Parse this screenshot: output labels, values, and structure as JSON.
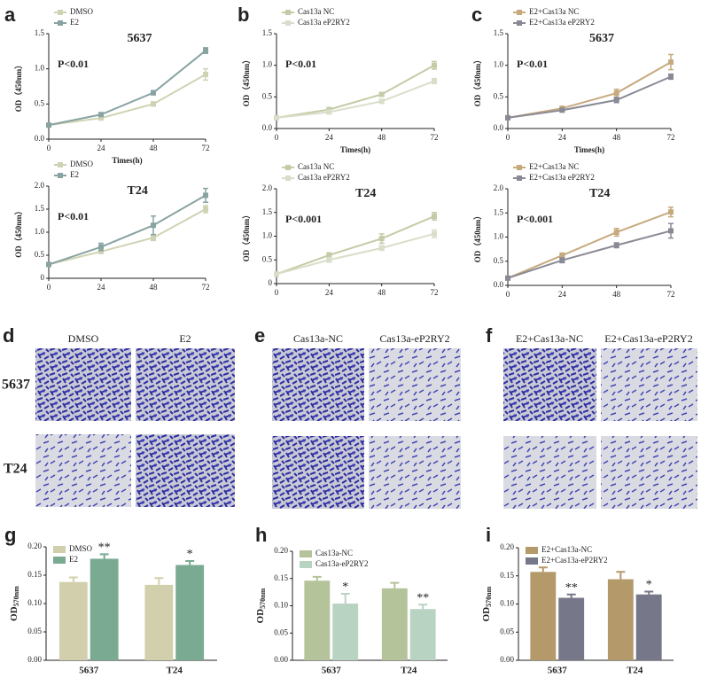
{
  "chart_data": [
    {
      "type": "line",
      "panel": "a",
      "title": "5637",
      "pvalue": "P<0.01",
      "xlabel": "Times(h)",
      "ylabel": "OD（450nm）",
      "x": [
        0,
        24,
        48,
        72
      ],
      "xlim": [
        0,
        72
      ],
      "xticks": [
        0,
        24,
        48,
        72
      ],
      "ylim": [
        0,
        1.5
      ],
      "yticks": [
        {
          "value": 0,
          "label": "0.0"
        },
        {
          "value": 0.5,
          "label": "0.5"
        },
        {
          "value": 1,
          "label": "1.0"
        },
        {
          "value": 1.5,
          "label": "1.5"
        }
      ],
      "series": [
        {
          "name": "DMSO",
          "color": "#cfd3b3",
          "values": [
            0.2,
            0.3,
            0.5,
            0.92
          ],
          "errors": [
            0.01,
            0.02,
            0.03,
            0.08
          ]
        },
        {
          "name": "E2",
          "color": "#88a3a2",
          "values": [
            0.2,
            0.35,
            0.66,
            1.26
          ],
          "errors": [
            0.01,
            0.02,
            0.03,
            0.04
          ]
        }
      ]
    },
    {
      "type": "line",
      "panel": "b",
      "pvalue": "P<0.01",
      "xlabel": "Times(h)",
      "ylabel": "OD（450nm）",
      "x": [
        0,
        24,
        48,
        72
      ],
      "xlim": [
        0,
        72
      ],
      "xticks": [
        0,
        24,
        48,
        72
      ],
      "ylim": [
        0,
        1.5
      ],
      "yticks": [
        {
          "value": 0,
          "label": "0.0"
        },
        {
          "value": 0.5,
          "label": "0.5"
        },
        {
          "value": 1,
          "label": "1.0"
        },
        {
          "value": 1.5,
          "label": "1.5"
        }
      ],
      "series": [
        {
          "name": "Cas13a NC",
          "color": "#c3cca6",
          "values": [
            0.17,
            0.3,
            0.54,
            1.0
          ],
          "errors": [
            0.01,
            0.03,
            0.03,
            0.06
          ]
        },
        {
          "name": "Cas13a eP2RY2",
          "color": "#d9dec9",
          "values": [
            0.17,
            0.26,
            0.43,
            0.75
          ],
          "errors": [
            0.01,
            0.02,
            0.03,
            0.04
          ]
        }
      ]
    },
    {
      "type": "line",
      "panel": "c",
      "title": "5637",
      "pvalue": "P<0.01",
      "xlabel": "Times(h)",
      "ylabel": "OD（450nm）",
      "x": [
        0,
        24,
        48,
        72
      ],
      "xlim": [
        0,
        72
      ],
      "xticks": [
        0,
        24,
        48,
        72
      ],
      "ylim": [
        0,
        1.5
      ],
      "yticks": [
        {
          "value": 0,
          "label": "0.0"
        },
        {
          "value": 0.5,
          "label": "0.5"
        },
        {
          "value": 1,
          "label": "1.0"
        },
        {
          "value": 1.5,
          "label": "1.5"
        }
      ],
      "series": [
        {
          "name": "E2+Cas13a NC",
          "color": "#c6aa7e",
          "values": [
            0.17,
            0.32,
            0.56,
            1.05
          ],
          "errors": [
            0.01,
            0.03,
            0.06,
            0.12
          ]
        },
        {
          "name": "E2+Cas13a eP2RY2",
          "color": "#8a8a96",
          "values": [
            0.17,
            0.29,
            0.45,
            0.82
          ],
          "errors": [
            0.01,
            0.02,
            0.04,
            0.04
          ]
        }
      ]
    },
    {
      "type": "line",
      "title": "T24",
      "pvalue": "P<0.01",
      "ylabel": "OD（450nm）",
      "x": [
        0,
        24,
        48,
        72
      ],
      "xlim": [
        0,
        72
      ],
      "xticks": [
        0,
        24,
        48,
        72
      ],
      "ylim": [
        0,
        2
      ],
      "yticks": [
        0,
        {
          "value": 0.5,
          "label": "0.5"
        },
        {
          "value": 1,
          "label": "1.0"
        },
        {
          "value": 1.5,
          "label": "1.5"
        },
        {
          "value": 2,
          "label": "2.0"
        }
      ],
      "series": [
        {
          "name": "DMSO",
          "color": "#cfd3b3",
          "values": [
            0.3,
            0.58,
            0.88,
            1.5
          ],
          "errors": [
            0.02,
            0.04,
            0.06,
            0.08
          ]
        },
        {
          "name": "E2",
          "color": "#88a3a2",
          "values": [
            0.3,
            0.68,
            1.15,
            1.8
          ],
          "errors": [
            0.02,
            0.08,
            0.2,
            0.15
          ]
        }
      ]
    },
    {
      "type": "line",
      "title": "T24",
      "pvalue": "P<0.001",
      "ylabel": "OD（450nm）",
      "x": [
        0,
        24,
        48,
        72
      ],
      "xlim": [
        0,
        72
      ],
      "xticks": [
        0,
        24,
        48,
        72
      ],
      "ylim": [
        0,
        2
      ],
      "yticks": [
        0,
        {
          "value": 0.5,
          "label": "0.5"
        },
        {
          "value": 1,
          "label": "1.0"
        },
        {
          "value": 1.5,
          "label": "1.5"
        },
        {
          "value": 2,
          "label": "2.0"
        }
      ],
      "series": [
        {
          "name": "Cas13a NC",
          "color": "#c3cca6",
          "values": [
            0.2,
            0.6,
            0.95,
            1.42
          ],
          "errors": [
            0.02,
            0.05,
            0.1,
            0.08
          ]
        },
        {
          "name": "Cas13a eP2RY2",
          "color": "#d9dec9",
          "values": [
            0.2,
            0.5,
            0.75,
            1.05
          ],
          "errors": [
            0.02,
            0.05,
            0.05,
            0.08
          ]
        }
      ]
    },
    {
      "type": "line",
      "title": "T24",
      "pvalue": "P<0.001",
      "ylabel": "OD（450nm）",
      "x": [
        0,
        24,
        48,
        72
      ],
      "xlim": [
        0,
        72
      ],
      "xticks": [
        0,
        24,
        48,
        72
      ],
      "ylim": [
        0,
        2
      ],
      "yticks": [
        {
          "value": 0,
          "label": "0.0"
        },
        {
          "value": 0.5,
          "label": "0.5"
        },
        {
          "value": 1,
          "label": "1.0"
        },
        {
          "value": 1.5,
          "label": "1.5"
        },
        {
          "value": 2,
          "label": "2.0"
        }
      ],
      "series": [
        {
          "name": "E2+Cas13a NC",
          "color": "#c6aa7e",
          "values": [
            0.15,
            0.62,
            1.1,
            1.52
          ],
          "errors": [
            0.02,
            0.05,
            0.08,
            0.1
          ]
        },
        {
          "name": "E2+Cas13a eP2RY2",
          "color": "#8a8a96",
          "values": [
            0.15,
            0.52,
            0.83,
            1.13
          ],
          "errors": [
            0.02,
            0.05,
            0.05,
            0.15
          ]
        }
      ]
    },
    {
      "type": "bar",
      "panel": "g",
      "ylabel": "OD",
      "ylabel_sub": "570nm",
      "categories": [
        "5637",
        "T24"
      ],
      "ylim": [
        0,
        0.2
      ],
      "yticks": [
        {
          "value": 0,
          "label": "0.00"
        },
        {
          "value": 0.05,
          "label": "0.05"
        },
        {
          "value": 0.1,
          "label": "0.10"
        },
        {
          "value": 0.15,
          "label": "0.15"
        },
        {
          "value": 0.2,
          "label": "0.20"
        }
      ],
      "series": [
        {
          "name": "DMSO",
          "color": "#d2d0ac",
          "values": [
            0.138,
            0.133
          ],
          "errors": [
            0.008,
            0.012
          ]
        },
        {
          "name": "E2",
          "color": "#7aaa92",
          "values": [
            0.179,
            0.168
          ],
          "errors": [
            0.008,
            0.007
          ],
          "stars": [
            "**",
            "*"
          ]
        }
      ]
    },
    {
      "type": "bar",
      "panel": "h",
      "ylabel": "OD",
      "ylabel_sub": "570nm",
      "categories": [
        "5637",
        "T24"
      ],
      "ylim": [
        0,
        0.2
      ],
      "yticks": [
        {
          "value": 0,
          "label": "0.00"
        },
        {
          "value": 0.05,
          "label": "0.05"
        },
        {
          "value": 0.1,
          "label": "0.10"
        },
        {
          "value": 0.15,
          "label": "0.15"
        },
        {
          "value": 0.2,
          "label": "0.20"
        }
      ],
      "series": [
        {
          "name": "Cas13a-NC",
          "color": "#b4c399",
          "values": [
            0.146,
            0.132
          ],
          "errors": [
            0.007,
            0.01
          ]
        },
        {
          "name": "Cas13a-eP2RY2",
          "color": "#b9d3c3",
          "values": [
            0.104,
            0.094
          ],
          "errors": [
            0.018,
            0.008
          ],
          "stars": [
            "*",
            "**"
          ]
        }
      ]
    },
    {
      "type": "bar",
      "panel": "i",
      "ylabel": "OD",
      "ylabel_sub": "570nm",
      "categories": [
        "5637",
        "T24"
      ],
      "ylim": [
        0,
        0.2
      ],
      "yticks": [
        {
          "value": 0,
          "label": "0.00"
        },
        {
          "value": 0.05,
          "label": "0.05"
        },
        {
          "value": 0.1,
          "label": "0.10"
        },
        {
          "value": 0.15,
          "label": "0.15"
        },
        {
          "value": 0.2,
          "label": "0.20"
        }
      ],
      "series": [
        {
          "name": "E2+Cas13a-NC",
          "color": "#b4996a",
          "values": [
            0.157,
            0.144
          ],
          "errors": [
            0.008,
            0.013
          ]
        },
        {
          "name": "E2+Cas13a-eP2RY2",
          "color": "#77778a",
          "values": [
            0.111,
            0.117
          ],
          "errors": [
            0.006,
            0.005
          ],
          "stars": [
            "**",
            "*"
          ]
        }
      ]
    }
  ],
  "image_panels": [
    {
      "panel": "d",
      "columns": [
        "DMSO",
        "E2"
      ]
    },
    {
      "panel": "e",
      "columns": [
        "Cas13a-NC",
        "Cas13a-eP2RY2"
      ]
    },
    {
      "panel": "f",
      "columns": [
        "E2+Cas13a-NC",
        "E2+Cas13a-eP2RY2"
      ]
    }
  ],
  "row_labels": [
    "5637",
    "T24"
  ]
}
